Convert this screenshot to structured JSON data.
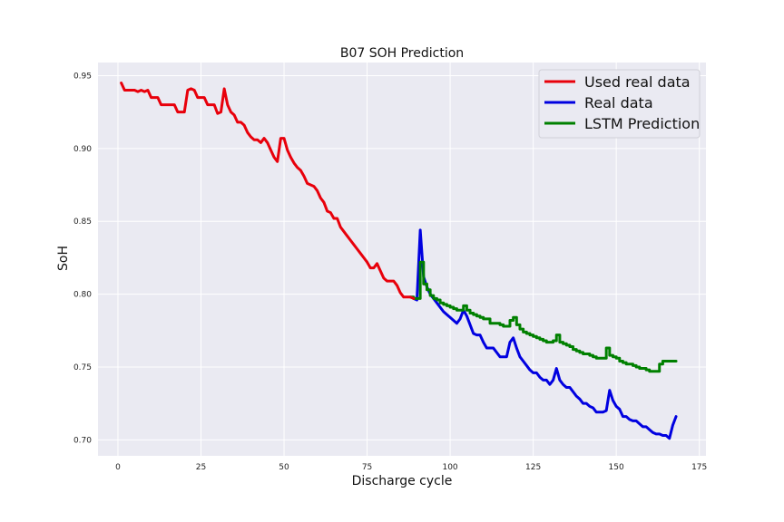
{
  "chart_data": {
    "type": "line",
    "title": "B07 SOH Prediction",
    "xlabel": "Discharge cycle",
    "ylabel": "SoH",
    "xlim": [
      -6,
      177
    ],
    "ylim": [
      0.689,
      0.959
    ],
    "xticks": [
      0,
      25,
      50,
      75,
      100,
      125,
      150,
      175
    ],
    "yticks": [
      0.7,
      0.75,
      0.8,
      0.85,
      0.9,
      0.95
    ],
    "grid": true,
    "legend_position": "top-right",
    "series": [
      {
        "name": "Used real data",
        "color": "#e8000b",
        "x": [
          1,
          2,
          3,
          4,
          5,
          6,
          7,
          8,
          9,
          10,
          11,
          12,
          13,
          14,
          15,
          16,
          17,
          18,
          19,
          20,
          21,
          22,
          23,
          24,
          25,
          26,
          27,
          28,
          29,
          30,
          31,
          32,
          33,
          34,
          35,
          36,
          37,
          38,
          39,
          40,
          41,
          42,
          43,
          44,
          45,
          46,
          47,
          48,
          49,
          50,
          51,
          52,
          53,
          54,
          55,
          56,
          57,
          58,
          59,
          60,
          61,
          62,
          63,
          64,
          65,
          66,
          67,
          68,
          69,
          70,
          71,
          72,
          73,
          74,
          75,
          76,
          77,
          78,
          79,
          80,
          81,
          82,
          83,
          84,
          85,
          86,
          87,
          88,
          89
        ],
        "y": [
          0.945,
          0.94,
          0.94,
          0.94,
          0.94,
          0.939,
          0.94,
          0.939,
          0.94,
          0.935,
          0.935,
          0.935,
          0.93,
          0.93,
          0.93,
          0.93,
          0.93,
          0.925,
          0.925,
          0.925,
          0.94,
          0.941,
          0.94,
          0.935,
          0.935,
          0.935,
          0.93,
          0.93,
          0.93,
          0.924,
          0.925,
          0.941,
          0.93,
          0.925,
          0.923,
          0.918,
          0.918,
          0.916,
          0.911,
          0.908,
          0.906,
          0.906,
          0.904,
          0.907,
          0.904,
          0.899,
          0.894,
          0.891,
          0.907,
          0.907,
          0.899,
          0.894,
          0.89,
          0.887,
          0.885,
          0.881,
          0.876,
          0.875,
          0.874,
          0.871,
          0.866,
          0.863,
          0.857,
          0.856,
          0.852,
          0.852,
          0.846,
          0.843,
          0.84,
          0.837,
          0.834,
          0.831,
          0.828,
          0.825,
          0.822,
          0.818,
          0.818,
          0.821,
          0.816,
          0.811,
          0.809,
          0.809,
          0.809,
          0.806,
          0.801,
          0.798,
          0.798,
          0.798,
          0.797
        ]
      },
      {
        "name": "Real data",
        "color": "#0000e0",
        "x": [
          89,
          90,
          91,
          92,
          93,
          94,
          95,
          96,
          97,
          98,
          99,
          100,
          101,
          102,
          103,
          104,
          105,
          106,
          107,
          108,
          109,
          110,
          111,
          112,
          113,
          114,
          115,
          116,
          117,
          118,
          119,
          120,
          121,
          122,
          123,
          124,
          125,
          126,
          127,
          128,
          129,
          130,
          131,
          132,
          133,
          134,
          135,
          136,
          137,
          138,
          139,
          140,
          141,
          142,
          143,
          144,
          145,
          146,
          147,
          148,
          149,
          150,
          151,
          152,
          153,
          154,
          155,
          156,
          157,
          158,
          159,
          160,
          161,
          162,
          163,
          164,
          165,
          166,
          167,
          168
        ],
        "y": [
          0.797,
          0.796,
          0.844,
          0.812,
          0.805,
          0.8,
          0.797,
          0.794,
          0.791,
          0.788,
          0.786,
          0.784,
          0.782,
          0.78,
          0.783,
          0.789,
          0.785,
          0.779,
          0.773,
          0.772,
          0.772,
          0.767,
          0.763,
          0.763,
          0.763,
          0.76,
          0.757,
          0.757,
          0.757,
          0.767,
          0.77,
          0.763,
          0.757,
          0.754,
          0.751,
          0.748,
          0.746,
          0.746,
          0.743,
          0.741,
          0.741,
          0.738,
          0.741,
          0.749,
          0.741,
          0.738,
          0.736,
          0.736,
          0.733,
          0.73,
          0.728,
          0.725,
          0.725,
          0.723,
          0.722,
          0.719,
          0.719,
          0.719,
          0.72,
          0.734,
          0.727,
          0.723,
          0.721,
          0.716,
          0.716,
          0.714,
          0.713,
          0.713,
          0.711,
          0.709,
          0.709,
          0.707,
          0.705,
          0.704,
          0.704,
          0.703,
          0.703,
          0.701,
          0.71,
          0.716
        ]
      },
      {
        "name": "LSTM Prediction",
        "color": "#008000",
        "x": [
          88,
          89,
          90,
          91,
          92,
          93,
          94,
          95,
          96,
          97,
          98,
          99,
          100,
          101,
          102,
          103,
          104,
          105,
          106,
          107,
          108,
          109,
          110,
          111,
          112,
          113,
          114,
          115,
          116,
          117,
          118,
          119,
          120,
          121,
          122,
          123,
          124,
          125,
          126,
          127,
          128,
          129,
          130,
          131,
          132,
          133,
          134,
          135,
          136,
          137,
          138,
          139,
          140,
          141,
          142,
          143,
          144,
          145,
          146,
          147,
          148,
          149,
          150,
          151,
          152,
          153,
          154,
          155,
          156,
          157,
          158,
          159,
          160,
          161,
          162,
          163,
          164,
          165,
          166,
          167,
          168
        ],
        "y": [
          0.798,
          0.797,
          0.797,
          0.822,
          0.807,
          0.803,
          0.799,
          0.797,
          0.796,
          0.794,
          0.793,
          0.792,
          0.791,
          0.79,
          0.789,
          0.789,
          0.792,
          0.789,
          0.787,
          0.786,
          0.785,
          0.784,
          0.783,
          0.783,
          0.78,
          0.78,
          0.78,
          0.779,
          0.778,
          0.778,
          0.782,
          0.784,
          0.779,
          0.776,
          0.774,
          0.773,
          0.772,
          0.771,
          0.77,
          0.769,
          0.768,
          0.767,
          0.767,
          0.768,
          0.772,
          0.767,
          0.766,
          0.765,
          0.764,
          0.762,
          0.761,
          0.76,
          0.759,
          0.759,
          0.758,
          0.757,
          0.756,
          0.756,
          0.756,
          0.763,
          0.758,
          0.757,
          0.756,
          0.754,
          0.753,
          0.752,
          0.752,
          0.751,
          0.75,
          0.749,
          0.749,
          0.748,
          0.747,
          0.747,
          0.747,
          0.752,
          0.754,
          0.754,
          0.754,
          0.754,
          0.754
        ]
      }
    ]
  }
}
